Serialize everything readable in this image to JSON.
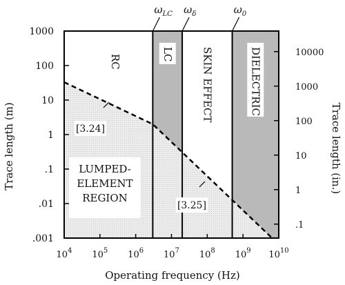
{
  "chart_data": {
    "type": "line",
    "xlabel": "Operating frequency (Hz)",
    "ylabel": "Trace length (m)",
    "y2label": "Trace length (in.)",
    "xscale": "log",
    "yscale": "log",
    "xlim": [
      10000,
      10000000000
    ],
    "ylim": [
      0.001,
      1000
    ],
    "x_ticks": [
      {
        "base": "10",
        "exp": "4",
        "value": 10000
      },
      {
        "base": "10",
        "exp": "5",
        "value": 100000
      },
      {
        "base": "10",
        "exp": "6",
        "value": 1000000
      },
      {
        "base": "10",
        "exp": "7",
        "value": 10000000
      },
      {
        "base": "10",
        "exp": "8",
        "value": 100000000
      },
      {
        "base": "10",
        "exp": "9",
        "value": 1000000000
      },
      {
        "base": "10",
        "exp": "10",
        "value": 10000000000
      }
    ],
    "y_ticks": [
      {
        "label": "1000",
        "value": 1000
      },
      {
        "label": "100",
        "value": 100
      },
      {
        "label": "10",
        "value": 10
      },
      {
        "label": "1",
        "value": 1
      },
      {
        "label": ".1",
        "value": 0.1
      },
      {
        "label": ".01",
        "value": 0.01
      },
      {
        "label": ".001",
        "value": 0.001
      }
    ],
    "y2_ticks": [
      {
        "label": "10000",
        "value": 10000
      },
      {
        "label": "1000",
        "value": 1000
      },
      {
        "label": "100",
        "value": 100
      },
      {
        "label": "10",
        "value": 10
      },
      {
        "label": "1",
        "value": 1
      },
      {
        "label": ".1",
        "value": 0.1
      }
    ],
    "frequency_markers": [
      {
        "symbol": "ω",
        "sub": "LC",
        "x": 3000000
      },
      {
        "symbol": "ω",
        "sub": "δ",
        "x": 20000000
      },
      {
        "symbol": "ω",
        "sub": "0",
        "x": 500000000
      }
    ],
    "regions": [
      {
        "label": "RC",
        "x": [
          10000,
          3000000
        ],
        "shaded": false
      },
      {
        "label": "LC",
        "x": [
          3000000,
          20000000
        ],
        "shaded": true
      },
      {
        "label": "SKIN EFFECT",
        "x": [
          20000000,
          500000000
        ],
        "shaded": false
      },
      {
        "label": "DIELECTRIC",
        "x": [
          500000000,
          10000000000
        ],
        "shaded": true
      }
    ],
    "boundary": [
      {
        "name": "[3.24]",
        "x": [
          10000,
          3000000
        ],
        "y": [
          33,
          2
        ]
      },
      {
        "name": "[3.25]",
        "x": [
          3000000,
          6500000000
        ],
        "y": [
          2,
          0.001
        ]
      }
    ],
    "lumped_region_label": [
      "LUMPED-",
      "ELEMENT",
      "REGION"
    ],
    "colors": {
      "shaded": "#b9b9b9",
      "lumped_fill": "#ebebeb",
      "axes": "#000000",
      "boundary": "#000000"
    }
  }
}
